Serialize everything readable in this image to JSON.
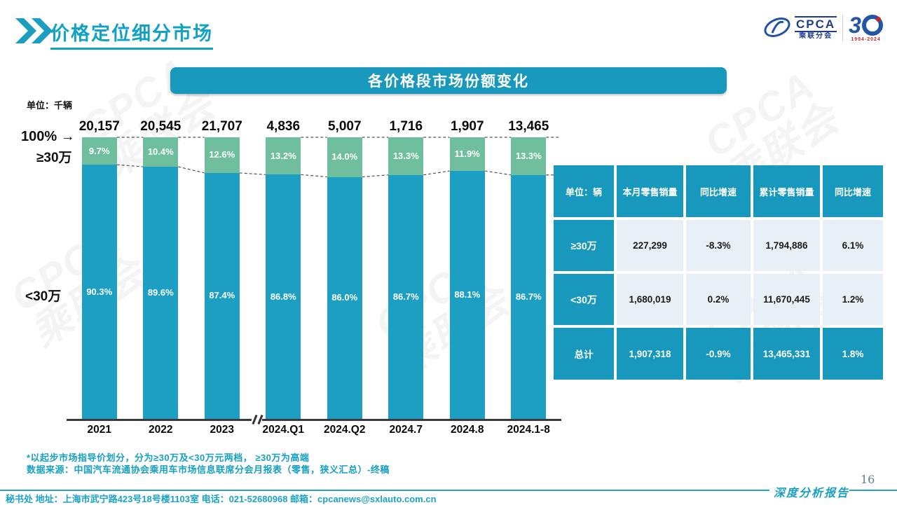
{
  "page": {
    "title": "价格定位细分市场",
    "page_number": "16",
    "report_label": "深度分析报告",
    "contact_footer": "秘书处  地址：上海市武宁路423号18号楼1103室 电话：021-52680968  邮箱：cpcanews@sxlauto.com.cn",
    "notes": [
      "*以起步市场指导价划分，分为≥30万及<30万元两档， ≥30万为高端",
      "数据来源：中国汽车流通协会乘用车市场信息联席分会月报表（零售，狭义汇总）-终稿"
    ]
  },
  "logo": {
    "acronym": "CPCA",
    "subtitle": "乘联分会",
    "anniversary_number": "3",
    "anniversary_years": "1994-2024",
    "watermark_text": "CPCA\n乘联会"
  },
  "chart": {
    "banner_title": "各价格段市场份额变化",
    "unit_label": "单位：千辆",
    "y_axis_top": "100% →",
    "y_axis_high_label": "≥30万",
    "y_axis_low_label": "<30万"
  },
  "chart_data": {
    "type": "bar",
    "subtype": "100-percent-stacked-with-axis-break",
    "categories": [
      "2021",
      "2022",
      "2023",
      "2024.Q1",
      "2024.Q2",
      "2024.7",
      "2024.8",
      "2024.1-8"
    ],
    "totals_thousand_units": [
      "20,157",
      "20,545",
      "21,707",
      "4,836",
      "5,007",
      "1,716",
      "1,907",
      "13,465"
    ],
    "series": [
      {
        "name": "≥30万",
        "color": "#6FBE9E",
        "values": [
          9.7,
          10.4,
          12.6,
          13.2,
          14.0,
          13.3,
          11.9,
          13.3
        ],
        "labels": [
          "9.7%",
          "10.4%",
          "12.6%",
          "13.2%",
          "14.0%",
          "13.3%",
          "11.9%",
          "13.3%"
        ]
      },
      {
        "name": "<30万",
        "color": "#1C9FC2",
        "values": [
          90.3,
          89.6,
          87.4,
          86.8,
          86.0,
          86.7,
          88.1,
          86.7
        ],
        "labels": [
          "90.3%",
          "89.6%",
          "87.4%",
          "86.8%",
          "86.0%",
          "86.7%",
          "88.1%",
          "86.7%"
        ]
      }
    ],
    "axis_break_between": [
      "2023",
      "2024.Q1"
    ],
    "ylim": [
      0,
      100
    ],
    "grid": false,
    "legend": false
  },
  "table": {
    "headers": [
      "单位：辆",
      "本月零售销量",
      "同比增速",
      "累计零售销量",
      "同比增速"
    ],
    "rows": [
      {
        "label": "≥30万",
        "cells": [
          "227,299",
          "-8.3%",
          "1,794,886",
          "6.1%"
        ],
        "highlight": false
      },
      {
        "label": "<30万",
        "cells": [
          "1,680,019",
          "0.2%",
          "11,670,445",
          "1.2%"
        ],
        "highlight": false
      },
      {
        "label": "总计",
        "cells": [
          "1,907,318",
          "-0.9%",
          "13,465,331",
          "1.8%"
        ],
        "highlight": true
      }
    ]
  },
  "colors": {
    "teal": "#1898BC",
    "bar_blue": "#1C9FC2",
    "bar_green": "#6FBE9E",
    "title_teal": "#10A2C6",
    "table_light_cell": "#E9EFF6",
    "logo_navy": "#1F3D8F",
    "logo_red": "#C4292F",
    "dashed_line": "#555555"
  }
}
